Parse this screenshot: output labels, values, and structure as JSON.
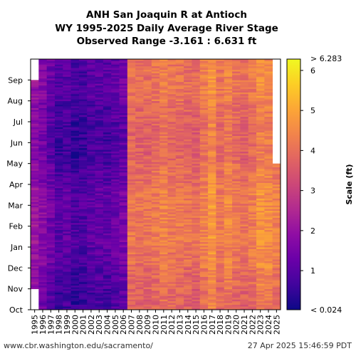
{
  "chart_data": {
    "type": "heatmap",
    "title_lines": [
      "ANH San Joaquin R at Antioch",
      "WY 1995-2025 Daily Average River Stage",
      "Observed Range -3.161 : 6.631 ft"
    ],
    "x": [
      "1995",
      "1996",
      "1997",
      "1998",
      "1999",
      "2000",
      "2001",
      "2002",
      "2003",
      "2004",
      "2005",
      "2006",
      "2007",
      "2008",
      "2009",
      "2010",
      "2011",
      "2012",
      "2013",
      "2014",
      "2015",
      "2016",
      "2017",
      "2018",
      "2019",
      "2020",
      "2021",
      "2022",
      "2023",
      "2024",
      "2025"
    ],
    "y": [
      "Oct",
      "Nov",
      "Dec",
      "Jan",
      "Feb",
      "Mar",
      "Apr",
      "May",
      "Jun",
      "Jul",
      "Aug",
      "Sep"
    ],
    "yearly_mean_stage_ft": [
      1.9,
      1.6,
      1.2,
      0.8,
      0.9,
      0.7,
      0.7,
      0.9,
      1.0,
      0.9,
      1.1,
      1.3,
      4.0,
      3.9,
      3.9,
      4.0,
      4.2,
      4.0,
      4.0,
      3.9,
      3.8,
      4.2,
      4.6,
      4.0,
      4.3,
      4.0,
      3.9,
      4.1,
      4.5,
      4.4,
      4.2
    ],
    "monthly_offset_ft": [
      -0.2,
      -0.1,
      0.1,
      0.2,
      0.2,
      0.2,
      0.0,
      -0.2,
      -0.2,
      -0.1,
      0.1,
      0.1
    ],
    "missing_periods": [
      {
        "year": "1995",
        "from_month": "Oct",
        "to_month": "Sep",
        "note": "partial"
      },
      {
        "year": "2025",
        "from_month": "May",
        "to_month": "Sep"
      }
    ],
    "colorbar": {
      "label": "Scale (ft)",
      "range": [
        0.024,
        6.283
      ],
      "ticks": [
        1,
        2,
        3,
        4,
        5,
        6
      ],
      "top_label": "> 6.283",
      "bottom_label": "< 0.024",
      "colormap": "plasma"
    }
  },
  "footer": {
    "left": "www.cbr.washington.edu/sacramento/",
    "right": "27 Apr 2025 15:46:59 PDT"
  }
}
